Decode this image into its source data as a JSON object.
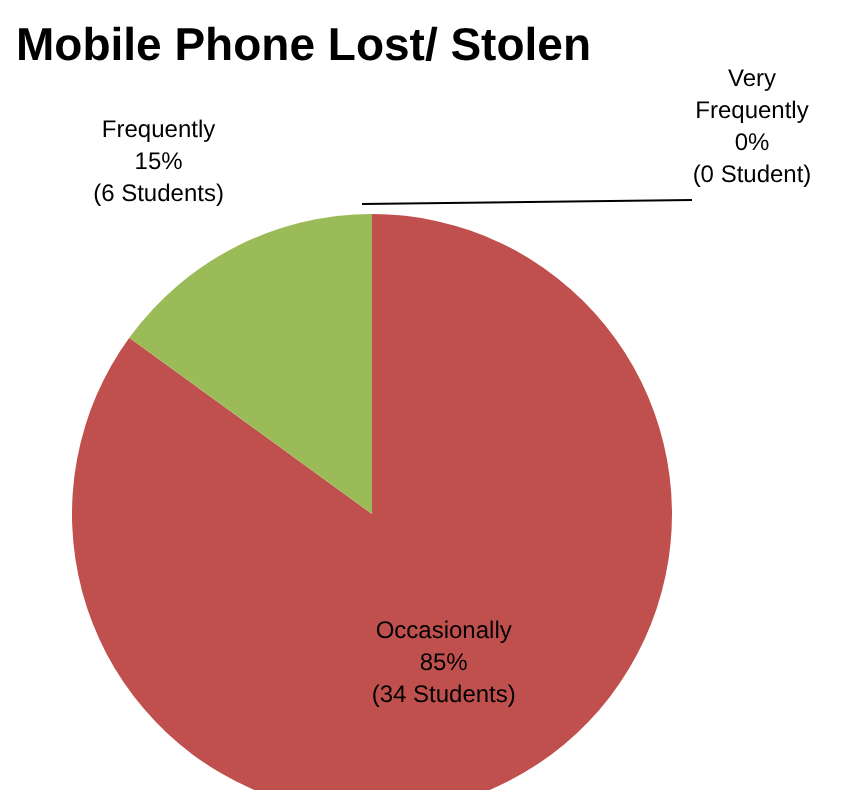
{
  "chart_data": {
    "type": "pie",
    "title": "Mobile Phone Lost/ Stolen",
    "categories": [
      "Very Frequently",
      "Occasionally",
      "Frequently"
    ],
    "values": [
      0,
      85,
      15
    ],
    "colors": [
      "#4f81bd",
      "#c0504d",
      "#9bbb59"
    ],
    "value_labels": [
      "0%\n(0 Student)",
      "85%\n(34 Students)",
      "15%\n(6 Students)"
    ],
    "legend": false
  }
}
